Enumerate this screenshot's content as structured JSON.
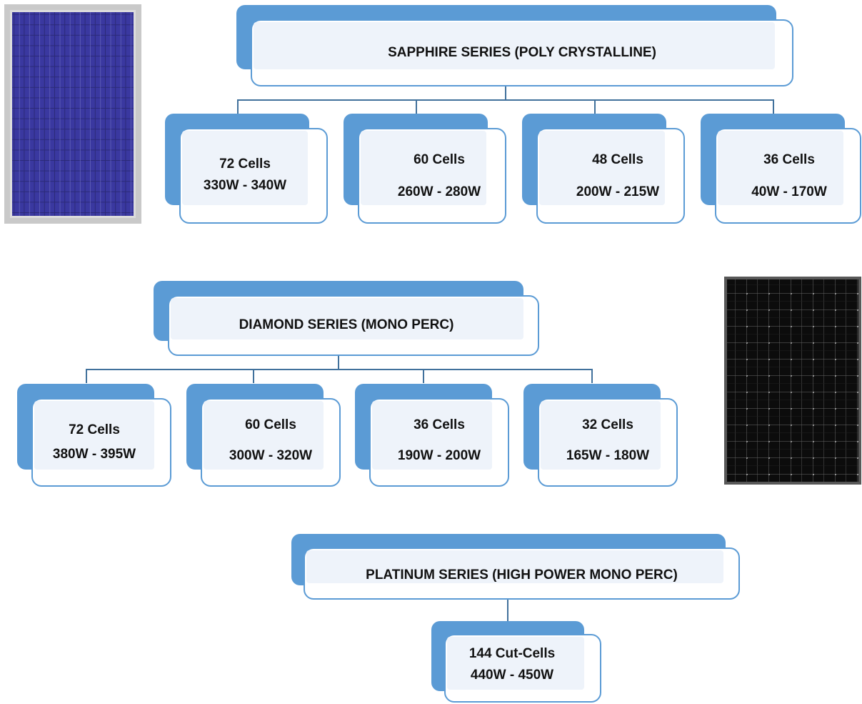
{
  "colors": {
    "accent": "#5b9bd5",
    "connector": "#41719c",
    "box_fill": "#eef3fa"
  },
  "series": [
    {
      "title": "SAPPHIRE SERIES (POLY CRYSTALLINE)",
      "variants": [
        {
          "cells": "72 Cells",
          "power": "330W - 340W"
        },
        {
          "cells": "60 Cells",
          "power": "260W - 280W"
        },
        {
          "cells": "48 Cells",
          "power": "200W - 215W"
        },
        {
          "cells": "36 Cells",
          "power": "40W - 170W"
        }
      ]
    },
    {
      "title": "DIAMOND SERIES (MONO PERC)",
      "variants": [
        {
          "cells": "72 Cells",
          "power": "380W - 395W"
        },
        {
          "cells": "60 Cells",
          "power": "300W - 320W"
        },
        {
          "cells": "36 Cells",
          "power": "190W - 200W"
        },
        {
          "cells": "32 Cells",
          "power": "165W - 180W"
        }
      ]
    },
    {
      "title": "PLATINUM SERIES (HIGH POWER MONO PERC)",
      "variants": [
        {
          "cells": "144 Cut-Cells",
          "power": "440W - 450W"
        }
      ]
    }
  ],
  "images": [
    {
      "icon": "poly-solar-panel-icon"
    },
    {
      "icon": "mono-solar-panel-icon"
    }
  ]
}
